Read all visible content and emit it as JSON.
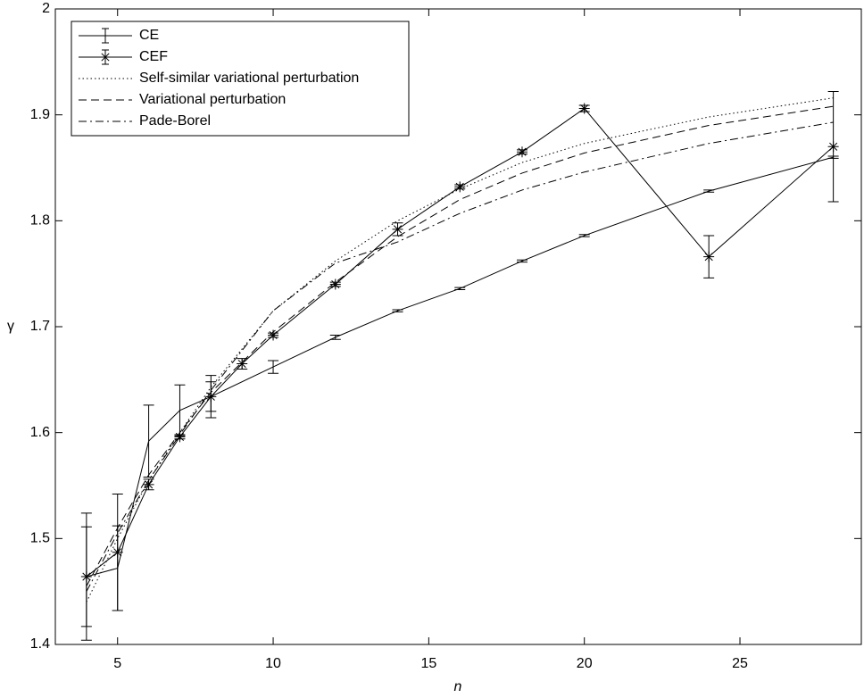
{
  "chart_data": {
    "type": "line",
    "x_label": "n",
    "y_label": "γ",
    "xlim": [
      3,
      28.9
    ],
    "ylim": [
      1.4,
      2
    ],
    "xticks": [
      5,
      10,
      15,
      20,
      25
    ],
    "yticks": [
      1.4,
      1.5,
      1.6,
      1.7,
      1.8,
      1.9,
      2
    ],
    "legend": "upper left",
    "series": [
      {
        "name": "CE",
        "color": "#000000",
        "linestyle": "solid",
        "marker": "none",
        "x": [
          4,
          5,
          6,
          7,
          8,
          10,
          12,
          14,
          16,
          18,
          20,
          24,
          28
        ],
        "values": [
          1.464,
          1.472,
          1.592,
          1.621,
          1.634,
          1.662,
          1.69,
          1.715,
          1.736,
          1.762,
          1.786,
          1.828,
          1.86
        ],
        "errors": [
          0.06,
          0.04,
          0.034,
          0.024,
          0.02,
          0.006,
          0.002,
          0.001,
          0.001,
          0.001,
          0.001,
          0.001,
          0.001
        ]
      },
      {
        "name": "CEF",
        "color": "#000000",
        "linestyle": "solid",
        "marker": "star",
        "x": [
          4,
          5,
          6,
          7,
          8,
          9,
          10,
          12,
          14,
          16,
          18,
          20,
          24,
          28
        ],
        "values": [
          1.464,
          1.487,
          1.551,
          1.596,
          1.634,
          1.665,
          1.692,
          1.74,
          1.792,
          1.832,
          1.865,
          1.906,
          1.766,
          1.87
        ],
        "errors": [
          0.047,
          0.055,
          0.005,
          0.002,
          0.014,
          0.005,
          0.002,
          0.002,
          0.006,
          0.002,
          0.002,
          0.003,
          0.02,
          0.052
        ]
      },
      {
        "name": "Self-similar variational perturbation",
        "color": "#000000",
        "linestyle": "dotted",
        "marker": "none",
        "x": [
          4,
          5,
          6,
          7,
          8,
          10,
          12,
          14,
          16,
          18,
          20,
          24,
          28
        ],
        "values": [
          1.44,
          1.5,
          1.555,
          1.6,
          1.643,
          1.715,
          1.762,
          1.8,
          1.83,
          1.855,
          1.873,
          1.898,
          1.916
        ]
      },
      {
        "name": "Variational perturbation",
        "color": "#000000",
        "linestyle": "dashed",
        "marker": "none",
        "x": [
          4,
          5,
          6,
          7,
          8,
          10,
          12,
          14,
          16,
          18,
          20,
          24,
          28
        ],
        "values": [
          1.455,
          1.51,
          1.56,
          1.6,
          1.638,
          1.695,
          1.742,
          1.785,
          1.82,
          1.845,
          1.864,
          1.89,
          1.908
        ]
      },
      {
        "name": "Pade-Borel",
        "color": "#000000",
        "linestyle": "dashdot",
        "marker": "none",
        "x": [
          4,
          5,
          6,
          7,
          8,
          10,
          12,
          14,
          16,
          18,
          20,
          24,
          28
        ],
        "values": [
          1.45,
          1.505,
          1.555,
          1.598,
          1.64,
          1.715,
          1.76,
          1.78,
          1.807,
          1.829,
          1.846,
          1.873,
          1.893
        ]
      }
    ]
  }
}
